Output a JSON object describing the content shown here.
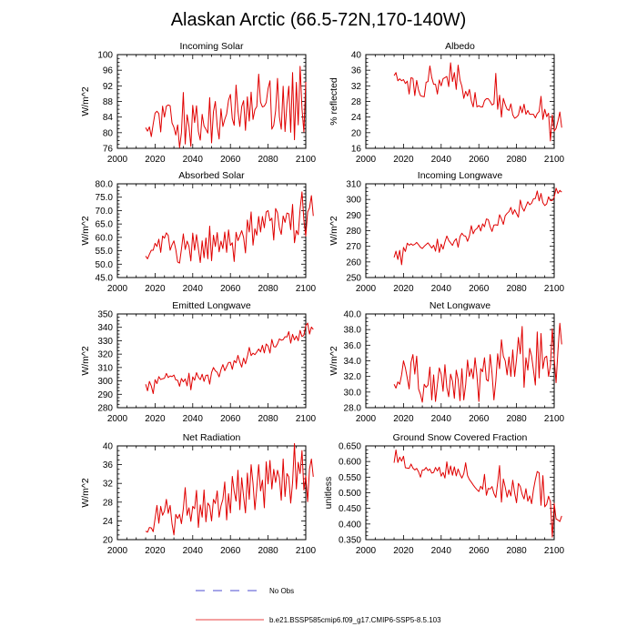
{
  "title": "Alaskan Arctic (66.5-72N,170-140W)",
  "legend": {
    "no_obs_label": "No Obs",
    "no_obs_color": "#4b4bd0",
    "model_label": "b.e21.BSSP585cmip6.f09_g17.CMIP6-SSP5-8.5.103",
    "model_color": "#e00000"
  },
  "chart_data": [
    {
      "type": "line",
      "title": "Incoming Solar",
      "xlabel": "",
      "ylabel": "W/m^2",
      "xlim": [
        2000,
        2100
      ],
      "ylim": [
        76,
        100
      ],
      "x_ticks": [
        2000,
        2020,
        2040,
        2060,
        2080,
        2100
      ],
      "y_ticks": [
        76,
        80,
        84,
        88,
        92,
        96,
        100
      ],
      "y_tick_labels": [
        "76",
        "80",
        "84",
        "88",
        "92",
        "96",
        "100"
      ],
      "series": [
        {
          "name": "b.e21.BSSP585cmip6.f09_g17.CMIP6-SSP5-8.5.103",
          "x_start": 2015,
          "x_step": 1,
          "values": [
            81.3,
            80.4,
            81.5,
            79.0,
            82.2,
            85.0,
            85.5,
            84.9,
            80.2,
            86.8,
            84.0,
            86.8,
            87.1,
            86.9,
            82.5,
            81.4,
            79.4,
            82.0,
            76.2,
            80.0,
            90.3,
            77.1,
            84.6,
            81.6,
            76.5,
            87.0,
            82.6,
            86.9,
            80.3,
            78.1,
            84.7,
            81.7,
            80.9,
            79.9,
            89.0,
            77.4,
            85.4,
            88.0,
            81.7,
            78.4,
            86.1,
            81.6,
            83.4,
            84.8,
            88.3,
            89.8,
            83.6,
            81.9,
            92.2,
            85.6,
            81.6,
            86.7,
            88.2,
            80.6,
            89.2,
            83.0,
            90.4,
            83.4,
            85.9,
            86.7,
            95.0,
            87.8,
            86.6,
            86.8,
            87.7,
            91.3,
            93.3,
            80.9,
            81.9,
            85.6,
            93.9,
            84.1,
            80.9,
            91.9,
            80.3,
            87.3,
            91.9,
            80.1,
            95.4,
            78.2,
            92.9,
            82.0,
            97.0,
            86.1,
            80.2,
            93.0
          ]
        }
      ]
    },
    {
      "type": "line",
      "title": "Albedo",
      "xlabel": "",
      "ylabel": "% reflected",
      "xlim": [
        2000,
        2100
      ],
      "ylim": [
        16,
        40
      ],
      "x_ticks": [
        2000,
        2020,
        2040,
        2060,
        2080,
        2100
      ],
      "y_ticks": [
        16,
        20,
        24,
        28,
        32,
        36,
        40
      ],
      "y_tick_labels": [
        "16",
        "20",
        "24",
        "28",
        "32",
        "36",
        "40"
      ],
      "series": [
        {
          "name": "b.e21.BSSP585cmip6.f09_g17.CMIP6-SSP5-8.5.103",
          "x_start": 2015,
          "x_step": 1,
          "values": [
            34.6,
            35.4,
            33.3,
            33.8,
            33.3,
            33.6,
            32.6,
            33.2,
            29.9,
            34.1,
            33.9,
            29.5,
            33.4,
            30.9,
            29.5,
            29.3,
            29.2,
            32.9,
            33.1,
            37.1,
            34.1,
            32.4,
            32.4,
            29.9,
            33.5,
            32.0,
            33.8,
            34.1,
            34.4,
            31.8,
            37.9,
            33.1,
            35.4,
            31.1,
            37.3,
            33.5,
            31.9,
            28.8,
            30.6,
            29.4,
            31.1,
            28.2,
            26.6,
            30.3,
            26.6,
            26.9,
            26.6,
            26.6,
            28.2,
            28.7,
            28.7,
            28.0,
            27.1,
            27.4,
            35.2,
            26.0,
            29.6,
            24.0,
            28.8,
            27.2,
            26.0,
            25.7,
            27.4,
            24.6,
            23.7,
            24.0,
            24.5,
            26.8,
            25.1,
            27.3,
            24.7,
            25.7,
            24.7,
            24.7,
            24.7,
            23.8,
            24.9,
            25.4,
            29.3,
            23.4,
            26.0,
            24.1,
            25.0,
            17.9,
            24.6,
            20.4,
            21.1,
            23.0,
            25.3,
            21.3
          ]
        }
      ]
    },
    {
      "type": "line",
      "title": "Absorbed Solar",
      "xlabel": "",
      "ylabel": "W/m^2",
      "xlim": [
        2000,
        2100
      ],
      "ylim": [
        45,
        80
      ],
      "x_ticks": [
        2000,
        2020,
        2040,
        2060,
        2080,
        2100
      ],
      "y_ticks": [
        45,
        50,
        55,
        60,
        65,
        70,
        75,
        80
      ],
      "y_tick_labels": [
        "45.0",
        "50.0",
        "55.0",
        "60.0",
        "65.0",
        "70.0",
        "75.0",
        "80.0"
      ],
      "series": [
        {
          "name": "b.e21.BSSP585cmip6.f09_g17.CMIP6-SSP5-8.5.103",
          "x_start": 2015,
          "x_step": 1,
          "values": [
            53.0,
            52.0,
            53.7,
            55.2,
            55.2,
            57.8,
            56.6,
            59.3,
            54.4,
            60.5,
            59.7,
            61.7,
            60.7,
            55.2,
            57.2,
            58.7,
            55.5,
            50.8,
            50.4,
            55.6,
            61.3,
            55.5,
            58.6,
            56.7,
            51.2,
            61.6,
            55.2,
            61.0,
            55.8,
            50.6,
            58.7,
            52.4,
            59.8,
            52.0,
            64.2,
            51.3,
            60.8,
            56.6,
            61.8,
            54.6,
            58.6,
            55.8,
            62.0,
            54.4,
            62.8,
            57.0,
            58.0,
            51.0,
            61.9,
            58.8,
            60.6,
            62.5,
            60.0,
            54.2,
            66.5,
            62.0,
            69.5,
            57.1,
            63.2,
            60.8,
            67.8,
            62.0,
            67.8,
            63.6,
            69.5,
            70.0,
            66.2,
            67.2,
            59.0,
            70.8,
            69.2,
            63.6,
            61.1,
            68.0,
            65.6,
            69.1,
            68.8,
            62.9,
            72.3,
            58.0,
            62.6,
            61.0,
            70.6,
            77.0,
            66.4,
            60.5,
            69.5,
            71.0,
            75.6,
            68.0
          ]
        }
      ]
    },
    {
      "type": "line",
      "title": "Incoming Longwave",
      "xlabel": "",
      "ylabel": "W/m^2",
      "xlim": [
        2000,
        2100
      ],
      "ylim": [
        250,
        310
      ],
      "x_ticks": [
        2000,
        2020,
        2040,
        2060,
        2080,
        2100
      ],
      "y_ticks": [
        250,
        260,
        270,
        280,
        290,
        300,
        310
      ],
      "y_tick_labels": [
        "250",
        "260",
        "270",
        "280",
        "290",
        "300",
        "310"
      ],
      "series": [
        {
          "name": "b.e21.BSSP585cmip6.f09_g17.CMIP6-SSP5-8.5.103",
          "x_start": 2015,
          "x_step": 1,
          "values": [
            262.9,
            266.9,
            261.6,
            267.4,
            258.2,
            269.3,
            266.7,
            272.0,
            270.7,
            271.6,
            270.7,
            271.3,
            272.5,
            271.0,
            269.4,
            268.6,
            270.0,
            271.1,
            272.2,
            270.6,
            268.9,
            270.7,
            266.9,
            274.6,
            266.1,
            271.4,
            268.2,
            272.8,
            276.6,
            273.8,
            272.2,
            270.6,
            273.4,
            274.9,
            269.4,
            276.2,
            278.4,
            276.8,
            276.5,
            273.2,
            276.7,
            283.2,
            278.0,
            280.5,
            281.4,
            283.6,
            279.8,
            284.4,
            282.5,
            287.5,
            287.1,
            282.5,
            279.5,
            283.6,
            283.8,
            283.4,
            290.2,
            287.5,
            284.0,
            289.6,
            291.1,
            292.2,
            294.9,
            290.5,
            293.4,
            291.0,
            288.6,
            299.6,
            294.8,
            292.5,
            295.6,
            298.5,
            296.6,
            297.6,
            300.4,
            300.6,
            305.4,
            299.1,
            303.8,
            297.9,
            296.1,
            297.1,
            301.7,
            299.3,
            299.3,
            301.5,
            307.2,
            303.9,
            305.8,
            304.7
          ]
        }
      ]
    },
    {
      "type": "line",
      "title": "Emitted Longwave",
      "xlabel": "",
      "ylabel": "W/m^2",
      "xlim": [
        2000,
        2100
      ],
      "ylim": [
        280,
        350
      ],
      "x_ticks": [
        2000,
        2020,
        2040,
        2060,
        2080,
        2100
      ],
      "y_ticks": [
        280,
        290,
        300,
        310,
        320,
        330,
        340,
        350
      ],
      "y_tick_labels": [
        "280",
        "290",
        "300",
        "310",
        "320",
        "330",
        "340",
        "350"
      ],
      "series": [
        {
          "name": "b.e21.BSSP585cmip6.f09_g17.CMIP6-SSP5-8.5.103",
          "x_start": 2015,
          "x_step": 1,
          "values": [
            297.5,
            292.6,
            299.6,
            296.2,
            290.5,
            300.9,
            298.0,
            303.2,
            301.0,
            301.6,
            302.0,
            305.6,
            302.5,
            303.7,
            303.2,
            304.4,
            300.7,
            300.5,
            296.0,
            301.8,
            299.3,
            301.5,
            296.3,
            305.7,
            293.3,
            303.0,
            300.5,
            306.2,
            302.8,
            300.9,
            305.0,
            299.6,
            304.1,
            304.4,
            297.6,
            306.3,
            310.0,
            307.5,
            306.4,
            303.0,
            308.4,
            312.2,
            307.6,
            310.6,
            313.7,
            313.9,
            308.6,
            315.2,
            313.5,
            319.1,
            314.0,
            310.3,
            317.0,
            312.8,
            318.2,
            325.0,
            318.9,
            320.7,
            319.6,
            321.6,
            323.8,
            321.6,
            326.6,
            320.9,
            327.6,
            326.0,
            320.8,
            331.0,
            325.6,
            325.3,
            327.7,
            331.4,
            330.4,
            330.8,
            333.0,
            332.8,
            336.8,
            328.2,
            334.8,
            330.6,
            333.5,
            330.0,
            337.7,
            333.1,
            334.2,
            341.2,
            343.2,
            335.0,
            340.2,
            338.4
          ]
        }
      ]
    },
    {
      "type": "line",
      "title": "Net Longwave",
      "xlabel": "",
      "ylabel": "W/m^2",
      "xlim": [
        2000,
        2100
      ],
      "ylim": [
        28,
        40
      ],
      "x_ticks": [
        2000,
        2020,
        2040,
        2060,
        2080,
        2100
      ],
      "y_ticks": [
        28,
        30,
        32,
        34,
        36,
        38,
        40
      ],
      "y_tick_labels": [
        "28.0",
        "30.0",
        "32.0",
        "34.0",
        "36.0",
        "38.0",
        "40.0"
      ],
      "series": [
        {
          "name": "b.e21.BSSP585cmip6.f09_g17.CMIP6-SSP5-8.5.103",
          "x_start": 2015,
          "x_step": 1,
          "values": [
            31.0,
            30.5,
            31.3,
            31.0,
            32.2,
            34.0,
            33.1,
            31.8,
            30.4,
            33.8,
            34.8,
            32.3,
            34.6,
            30.4,
            29.7,
            28.7,
            31.0,
            30.6,
            30.9,
            33.2,
            29.0,
            32.2,
            28.8,
            31.0,
            33.1,
            32.3,
            30.1,
            33.5,
            30.6,
            29.4,
            32.3,
            31.4,
            29.2,
            32.8,
            31.6,
            28.9,
            33.0,
            29.0,
            30.9,
            34.1,
            32.0,
            33.0,
            31.7,
            34.4,
            32.1,
            28.8,
            33.0,
            32.6,
            34.4,
            31.6,
            31.4,
            34.8,
            32.4,
            29.0,
            31.4,
            34.9,
            33.0,
            36.7,
            34.6,
            34.0,
            32.2,
            34.5,
            32.0,
            35.4,
            32.0,
            34.2,
            37.0,
            34.9,
            38.4,
            30.6,
            34.4,
            32.8,
            35.6,
            34.6,
            32.8,
            30.9,
            37.7,
            31.8,
            37.5,
            33.0,
            34.4,
            34.6,
            32.0,
            33.4,
            38.1,
            34.4,
            31.2,
            35.3,
            38.8,
            36.1
          ]
        }
      ]
    },
    {
      "type": "line",
      "title": "Net Radiation",
      "xlabel": "",
      "ylabel": "W/m^2",
      "xlim": [
        2000,
        2100
      ],
      "ylim": [
        20,
        40
      ],
      "x_ticks": [
        2000,
        2020,
        2040,
        2060,
        2080,
        2100
      ],
      "y_ticks": [
        20,
        24,
        28,
        32,
        36,
        40
      ],
      "y_tick_labels": [
        "20",
        "24",
        "28",
        "32",
        "36",
        "40"
      ],
      "series": [
        {
          "name": "b.e21.BSSP585cmip6.f09_g17.CMIP6-SSP5-8.5.103",
          "x_start": 2015,
          "x_step": 1,
          "values": [
            21.8,
            21.6,
            22.6,
            22.5,
            21.7,
            24.5,
            27.3,
            23.5,
            27.1,
            25.2,
            26.1,
            28.6,
            25.6,
            27.3,
            23.4,
            21.0,
            25.4,
            24.5,
            25.4,
            23.4,
            26.6,
            31.1,
            25.2,
            26.8,
            23.9,
            27.1,
            26.6,
            30.5,
            22.6,
            27.4,
            24.8,
            30.6,
            23.8,
            27.8,
            27.2,
            24.0,
            28.6,
            27.7,
            30.4,
            24.8,
            27.2,
            28.6,
            32.3,
            24.2,
            29.8,
            25.7,
            33.5,
            30.3,
            28.2,
            34.8,
            26.4,
            33.2,
            29.2,
            25.7,
            34.2,
            28.6,
            36.0,
            32.0,
            26.4,
            31.0,
            36.0,
            30.4,
            32.7,
            26.8,
            36.6,
            31.9,
            36.9,
            30.8,
            35.0,
            32.2,
            34.8,
            33.2,
            28.4,
            37.2,
            29.2,
            34.1,
            33.4,
            27.8,
            32.2,
            40.5,
            30.8,
            36.5,
            34.1,
            39.0,
            30.6,
            33.6,
            28.1,
            35.1,
            37.2,
            33.4
          ]
        }
      ]
    },
    {
      "type": "line",
      "title": "Ground Snow Covered Fraction",
      "xlabel": "",
      "ylabel": "unitless",
      "xlim": [
        2000,
        2100
      ],
      "ylim": [
        0.35,
        0.65
      ],
      "x_ticks": [
        2000,
        2020,
        2040,
        2060,
        2080,
        2100
      ],
      "y_ticks": [
        0.35,
        0.4,
        0.45,
        0.5,
        0.55,
        0.6,
        0.65
      ],
      "y_tick_labels": [
        "0.350",
        "0.400",
        "0.450",
        "0.500",
        "0.550",
        "0.600",
        "0.650"
      ],
      "series": [
        {
          "name": "b.e21.BSSP585cmip6.f09_g17.CMIP6-SSP5-8.5.103",
          "x_start": 2015,
          "x_step": 1,
          "values": [
            0.596,
            0.637,
            0.597,
            0.614,
            0.601,
            0.617,
            0.58,
            0.579,
            0.578,
            0.592,
            0.579,
            0.573,
            0.578,
            0.567,
            0.55,
            0.573,
            0.573,
            0.581,
            0.571,
            0.576,
            0.563,
            0.565,
            0.581,
            0.57,
            0.582,
            0.553,
            0.565,
            0.547,
            0.599,
            0.559,
            0.586,
            0.556,
            0.583,
            0.554,
            0.576,
            0.559,
            0.547,
            0.561,
            0.596,
            0.555,
            0.542,
            0.534,
            0.525,
            0.517,
            0.51,
            0.504,
            0.521,
            0.511,
            0.559,
            0.492,
            0.514,
            0.512,
            0.52,
            0.498,
            0.485,
            0.532,
            0.587,
            0.47,
            0.544,
            0.518,
            0.486,
            0.509,
            0.49,
            0.54,
            0.5,
            0.468,
            0.53,
            0.52,
            0.495,
            0.48,
            0.513,
            0.473,
            0.49,
            0.465,
            0.51,
            0.542,
            0.568,
            0.564,
            0.46,
            0.555,
            0.455,
            0.463,
            0.489,
            0.471,
            0.358,
            0.466,
            0.416,
            0.413,
            0.408,
            0.426
          ]
        }
      ]
    }
  ]
}
